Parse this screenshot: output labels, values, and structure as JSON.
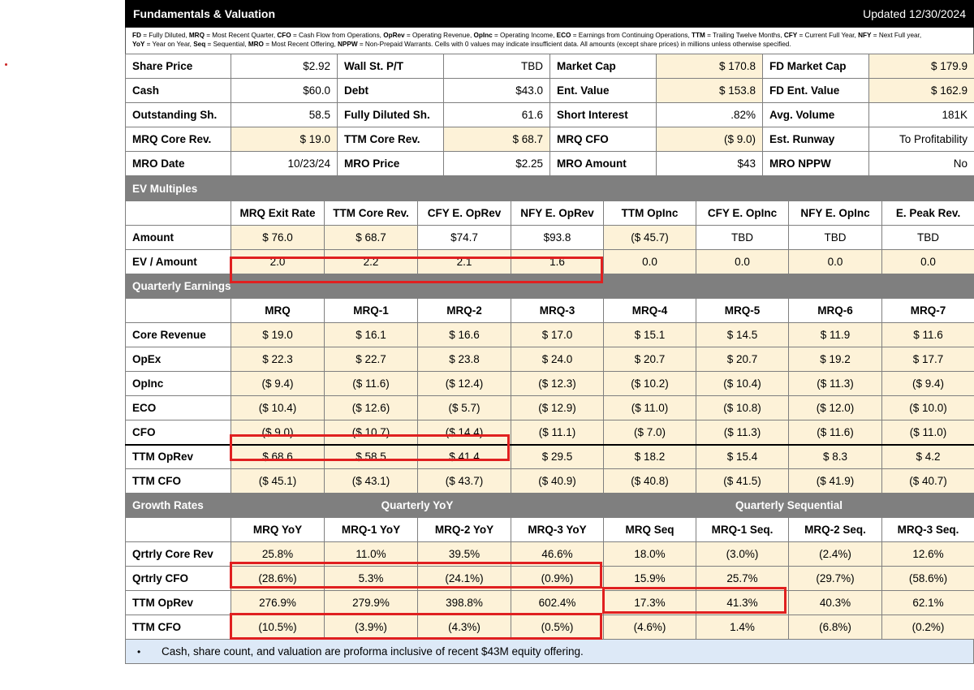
{
  "header": {
    "title": "Fundamentals & Valuation",
    "updated": "Updated 12/30/2024"
  },
  "legend": {
    "line1": [
      {
        "k": "FD",
        "v": " = Fully Diluted, "
      },
      {
        "k": "MRQ",
        "v": " = Most Recent Quarter, "
      },
      {
        "k": "CFO",
        "v": " = Cash Flow from Operations, "
      },
      {
        "k": "OpRev",
        "v": " = Operating Revenue, "
      },
      {
        "k": "OpInc",
        "v": " = Operating Income, "
      },
      {
        "k": "ECO",
        "v": " = Earnings from Continuing Operations, "
      },
      {
        "k": "TTM",
        "v": " = Trailing Twelve Months, "
      },
      {
        "k": "CFY",
        "v": " = Current Full Year, "
      },
      {
        "k": "NFY",
        "v": " = Next Full year,"
      }
    ],
    "line2": [
      {
        "k": "YoY",
        "v": " = Year on Year, "
      },
      {
        "k": "Seq",
        "v": " = Sequential, "
      },
      {
        "k": "MRO",
        "v": " = Most Recent Offering, "
      },
      {
        "k": "NPPW",
        "v": " = Non-Prepaid Warrants. Cells with 0 values may indicate insufficient data. All amounts (except share prices) in millions unless otherwise specified."
      }
    ]
  },
  "fundamentals": [
    [
      {
        "l": "Share Price",
        "v": "$2.92",
        "c": "white"
      },
      {
        "l": "Wall St. P/T",
        "v": "TBD",
        "c": "white"
      },
      {
        "l": "Market Cap",
        "v": "$ 170.8",
        "c": "cream"
      },
      {
        "l": "FD Market Cap",
        "v": "$ 179.9",
        "c": "cream"
      }
    ],
    [
      {
        "l": "Cash",
        "v": "$60.0",
        "c": "white"
      },
      {
        "l": "Debt",
        "v": "$43.0",
        "c": "white"
      },
      {
        "l": "Ent. Value",
        "v": "$ 153.8",
        "c": "cream"
      },
      {
        "l": "FD Ent. Value",
        "v": "$ 162.9",
        "c": "cream"
      }
    ],
    [
      {
        "l": "Outstanding Sh.",
        "v": "58.5",
        "c": "white"
      },
      {
        "l": "Fully Diluted Sh.",
        "v": "61.6",
        "c": "white"
      },
      {
        "l": "Short Interest",
        "v": ".82%",
        "c": "white"
      },
      {
        "l": "Avg. Volume",
        "v": "181K",
        "c": "white"
      }
    ],
    [
      {
        "l": "MRQ Core Rev.",
        "v": "$ 19.0",
        "c": "cream"
      },
      {
        "l": "TTM Core Rev.",
        "v": "$ 68.7",
        "c": "cream"
      },
      {
        "l": "MRQ CFO",
        "v": "($ 9.0)",
        "c": "cream"
      },
      {
        "l": "Est. Runway",
        "v": "To Profitability",
        "c": "white"
      }
    ],
    [
      {
        "l": "MRO Date",
        "v": "10/23/24",
        "c": "white"
      },
      {
        "l": "MRO Price",
        "v": "$2.25",
        "c": "white"
      },
      {
        "l": "MRO Amount",
        "v": "$43",
        "c": "white"
      },
      {
        "l": "MRO NPPW",
        "v": "No",
        "c": "white"
      }
    ]
  ],
  "ev": {
    "section": "EV Multiples",
    "headers": [
      "MRQ Exit Rate",
      "TTM Core Rev.",
      "CFY E. OpRev",
      "NFY E. OpRev",
      "TTM OpInc",
      "CFY E. OpInc",
      "NFY E. OpInc",
      "E. Peak Rev."
    ],
    "rows": [
      {
        "label": "Amount",
        "values": [
          "$ 76.0",
          "$ 68.7",
          "$74.7",
          "$93.8",
          "($ 45.7)",
          "TBD",
          "TBD",
          "TBD"
        ],
        "colors": [
          "cream",
          "cream",
          "white",
          "white",
          "cream",
          "white",
          "white",
          "white"
        ]
      },
      {
        "label": "EV / Amount",
        "values": [
          "2.0",
          "2.2",
          "2.1",
          "1.6",
          "0.0",
          "0.0",
          "0.0",
          "0.0"
        ],
        "colors": [
          "cream",
          "cream",
          "cream",
          "cream",
          "cream",
          "cream",
          "cream",
          "cream"
        ]
      }
    ]
  },
  "quarterly": {
    "section": "Quarterly Earnings",
    "headers": [
      "MRQ",
      "MRQ-1",
      "MRQ-2",
      "MRQ-3",
      "MRQ-4",
      "MRQ-5",
      "MRQ-6",
      "MRQ-7"
    ],
    "rows": [
      {
        "label": "Core Revenue",
        "values": [
          "$ 19.0",
          "$ 16.1",
          "$ 16.6",
          "$ 17.0",
          "$ 15.1",
          "$ 14.5",
          "$ 11.9",
          "$ 11.6"
        ]
      },
      {
        "label": "OpEx",
        "values": [
          "$ 22.3",
          "$ 22.7",
          "$ 23.8",
          "$ 24.0",
          "$ 20.7",
          "$ 20.7",
          "$ 19.2",
          "$ 17.7"
        ]
      },
      {
        "label": "OpInc",
        "values": [
          "($ 9.4)",
          "($ 11.6)",
          "($ 12.4)",
          "($ 12.3)",
          "($ 10.2)",
          "($ 10.4)",
          "($ 11.3)",
          "($ 9.4)"
        ]
      },
      {
        "label": "ECO",
        "values": [
          "($ 10.4)",
          "($ 12.6)",
          "($ 5.7)",
          "($ 12.9)",
          "($ 11.0)",
          "($ 10.8)",
          "($ 12.0)",
          "($ 10.0)"
        ]
      },
      {
        "label": "CFO",
        "values": [
          "($ 9.0)",
          "($ 10.7)",
          "($ 14.4)",
          "($ 11.1)",
          "($ 7.0)",
          "($ 11.3)",
          "($ 11.6)",
          "($ 11.0)"
        ]
      },
      {
        "label": "TTM OpRev",
        "values": [
          "$ 68.6",
          "$ 58.5",
          "$ 41.4",
          "$ 29.5",
          "$ 18.2",
          "$ 15.4",
          "$ 8.3",
          "$ 4.2"
        ]
      },
      {
        "label": "TTM CFO",
        "values": [
          "($ 45.1)",
          "($ 43.1)",
          "($ 43.7)",
          "($ 40.9)",
          "($ 40.8)",
          "($ 41.5)",
          "($ 41.9)",
          "($ 40.7)"
        ]
      }
    ]
  },
  "growth": {
    "section": "Growth Rates",
    "yoy_label": "Quarterly YoY",
    "seq_label": "Quarterly Sequential",
    "headers": [
      "MRQ YoY",
      "MRQ-1 YoY",
      "MRQ-2 YoY",
      "MRQ-3 YoY",
      "MRQ Seq",
      "MRQ-1 Seq.",
      "MRQ-2 Seq.",
      "MRQ-3 Seq."
    ],
    "rows": [
      {
        "label": "Qrtrly Core Rev",
        "values": [
          "25.8%",
          "11.0%",
          "39.5%",
          "46.6%",
          "18.0%",
          "(3.0%)",
          "(2.4%)",
          "12.6%"
        ]
      },
      {
        "label": "Qrtrly CFO",
        "values": [
          "(28.6%)",
          "5.3%",
          "(24.1%)",
          "(0.9%)",
          "15.9%",
          "25.7%",
          "(29.7%)",
          "(58.6%)"
        ]
      },
      {
        "label": "TTM OpRev",
        "values": [
          "276.9%",
          "279.9%",
          "398.8%",
          "602.4%",
          "17.3%",
          "41.3%",
          "40.3%",
          "62.1%"
        ]
      },
      {
        "label": "TTM CFO",
        "values": [
          "(10.5%)",
          "(3.9%)",
          "(4.3%)",
          "(0.5%)",
          "(4.6%)",
          "1.4%",
          "(6.8%)",
          "(0.2%)"
        ]
      }
    ]
  },
  "note": {
    "bullet": "•",
    "text": "Cash, share count, and valuation are proforma inclusive of recent $43M equity offering."
  },
  "colors": {
    "cream": "#fdf2d8",
    "section": "#7f7f7f",
    "highlight": "#e02020",
    "note": "#dde9f7"
  }
}
